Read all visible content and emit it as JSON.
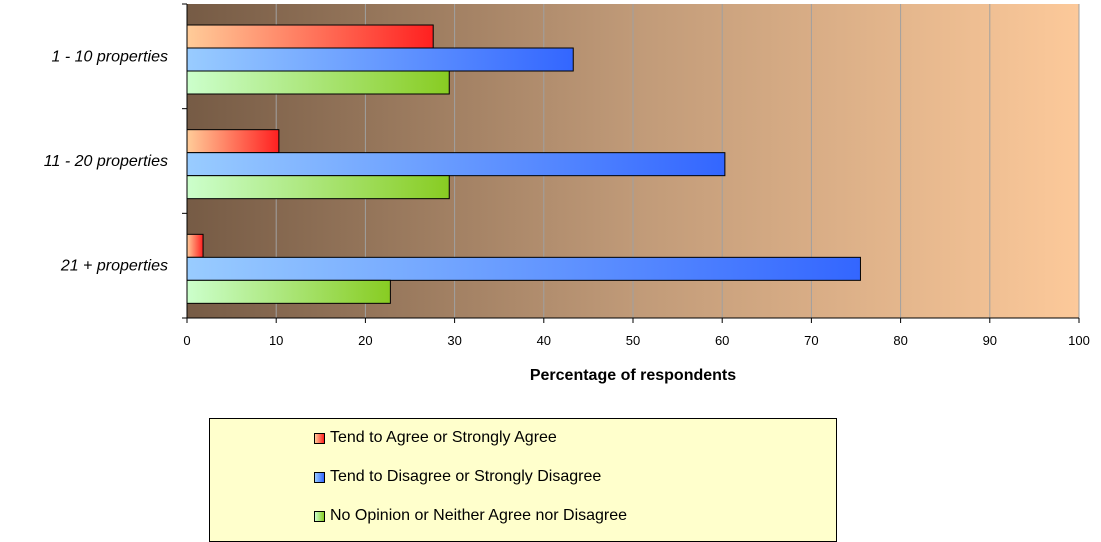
{
  "chart_data": {
    "type": "bar",
    "orientation": "horizontal",
    "categories": [
      "1 - 10 properties",
      "11 - 20 properties",
      "21 + properties"
    ],
    "series": [
      {
        "name": "Tend to Agree or Strongly Agree",
        "values": [
          27.6,
          10.3,
          1.8
        ],
        "color": "#ff2a2a"
      },
      {
        "name": "Tend to Disagree or Strongly Disagree",
        "values": [
          43.3,
          60.3,
          75.5
        ],
        "color": "#3366ff"
      },
      {
        "name": "No Opinion or Neither Agree nor Disagree",
        "values": [
          29.4,
          29.4,
          22.8
        ],
        "color": "#88cc22"
      }
    ],
    "xlabel": "Percentage of respondents",
    "ylabel": "",
    "xlim": [
      0,
      100
    ],
    "xticks": [
      0,
      10,
      20,
      30,
      40,
      50,
      60,
      70,
      80,
      90,
      100
    ],
    "grid": true,
    "legend_position": "bottom"
  }
}
